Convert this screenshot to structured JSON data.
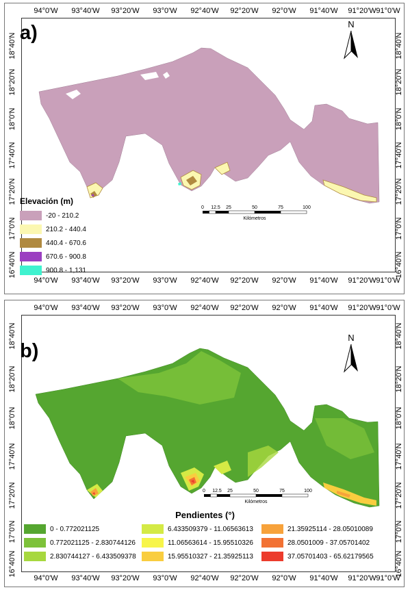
{
  "lon_labels": [
    "94°0'W",
    "93°40'W",
    "93°20'W",
    "93°0'W",
    "92°40'W",
    "92°20'W",
    "92°0'W",
    "91°40'W",
    "91°20'W",
    "91°0'W"
  ],
  "lat_labels": [
    "18°40'N",
    "18°20'N",
    "18°0'N",
    "17°40'N",
    "17°20'N",
    "17°0'N",
    "16°40'N"
  ],
  "panel_a": {
    "label": "a)",
    "north": "N",
    "legend_title": "Elevación (m)",
    "legend": [
      {
        "label": "-20 - 210.2",
        "color": "#c9a0ba"
      },
      {
        "label": "210.2 - 440.4",
        "color": "#fbf7b1"
      },
      {
        "label": "440.4 - 670.6",
        "color": "#b08a40"
      },
      {
        "label": "670.6 - 900.8",
        "color": "#9b3fc1"
      },
      {
        "label": "900.8 - 1,131",
        "color": "#3ff2cf"
      }
    ],
    "scale": {
      "ticks": [
        "0",
        "12.5",
        "25",
        "50",
        "75",
        "100"
      ],
      "unit": "Kilómetros"
    }
  },
  "panel_b": {
    "label": "b)",
    "north": "N",
    "legend_title": "Pendientes (°)",
    "legend": [
      {
        "label": "0 - 0.772021125",
        "color": "#55a630"
      },
      {
        "label": "0.772021125 - 2.830744126",
        "color": "#7dc23a"
      },
      {
        "label": "2.830744127 - 6.433509378",
        "color": "#a7d83e"
      },
      {
        "label": "6.433509379 - 11.06563613",
        "color": "#d4ea45"
      },
      {
        "label": "11.06563614 - 15.95510326",
        "color": "#f7f54a"
      },
      {
        "label": "15.95510327 - 21.35925113",
        "color": "#f9cd3f"
      },
      {
        "label": "21.35925114 - 28.05010089",
        "color": "#f7a23b"
      },
      {
        "label": "28.0501009 - 37.05701402",
        "color": "#f27234"
      },
      {
        "label": "37.05701403 - 65.62179565",
        "color": "#ec3b2c"
      }
    ],
    "scale": {
      "ticks": [
        "0",
        "12.5",
        "25",
        "50",
        "75",
        "100"
      ],
      "unit": "Kilómetros"
    }
  }
}
